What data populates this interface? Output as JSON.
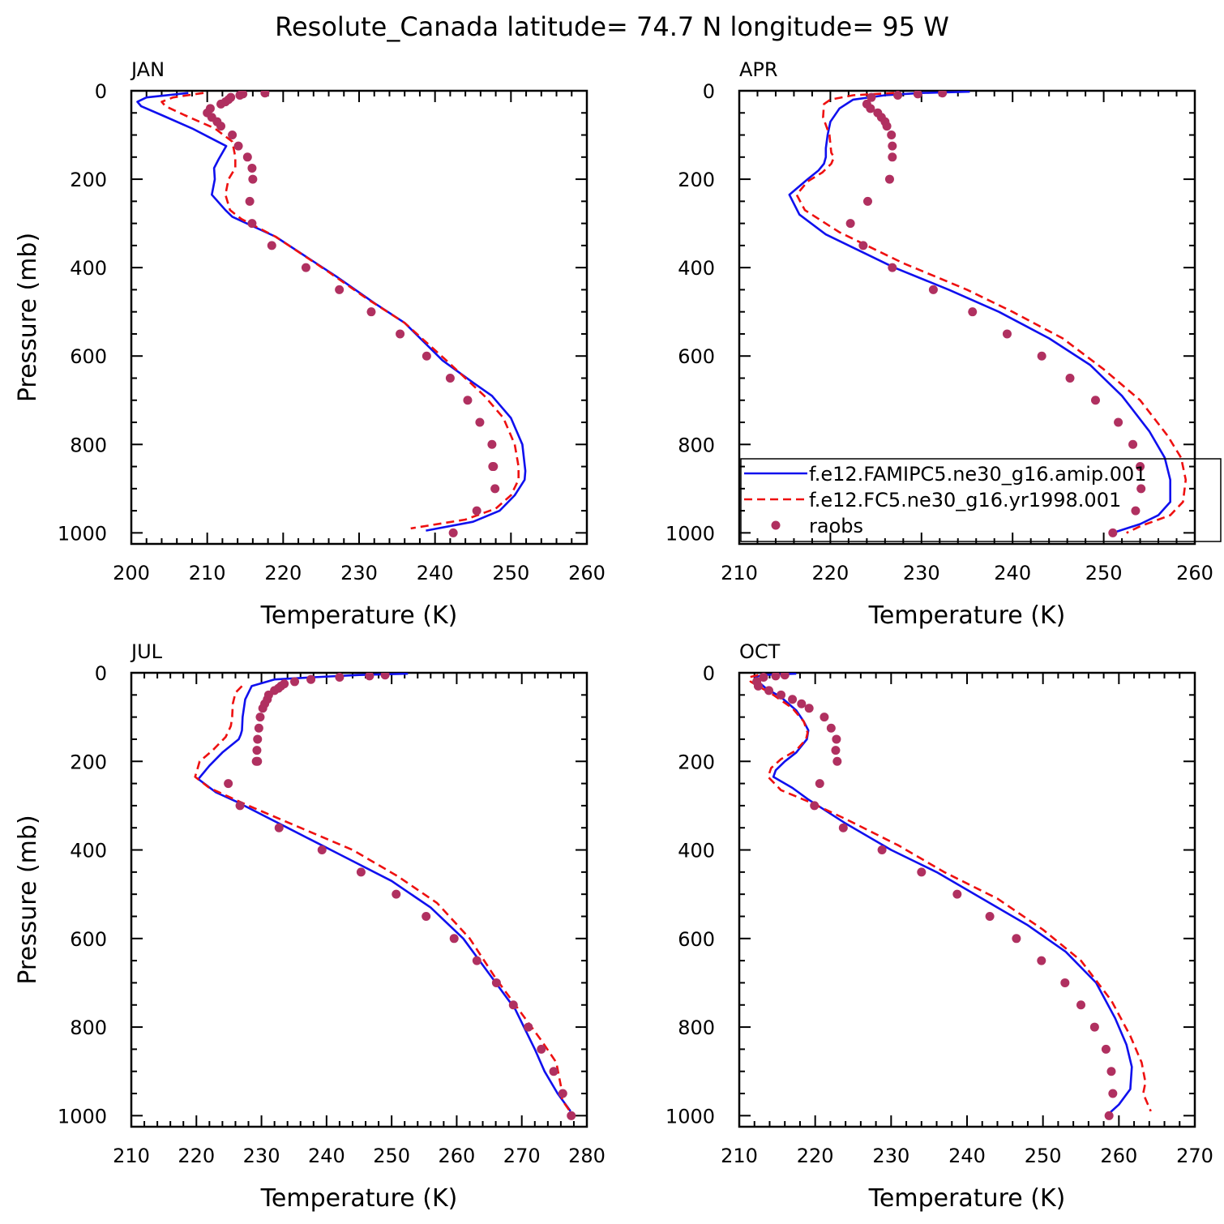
{
  "figure": {
    "title": "Resolute_Canada  latitude= 74.7 N longitude= 95 W"
  },
  "colors": {
    "model1": "#1010ee",
    "model2": "#ee1010",
    "obs": "#b03060",
    "axis": "#000000"
  },
  "chart_data": [
    {
      "type": "line",
      "title": "JAN",
      "xlabel": "Temperature (K)",
      "ylabel": "Pressure (mb)",
      "xlim": [
        200,
        260
      ],
      "ylim": [
        0,
        1025
      ],
      "xticks": [
        200,
        210,
        220,
        230,
        240,
        250,
        260
      ],
      "yticks": [
        0,
        200,
        400,
        600,
        800,
        1000
      ],
      "series": [
        {
          "name": "f.e12.FAMIPC5.ne30_g16.amip.001",
          "style": "solid",
          "color": "#1010ee",
          "x": [
            207.5,
            202,
            200.8,
            201.3,
            204,
            208,
            212.5,
            211.5,
            210.9,
            211,
            210.6,
            212.4,
            213.3,
            219,
            227,
            232,
            236,
            241,
            245,
            247.5,
            250,
            251.5,
            251.9,
            251.8,
            250.5,
            248.5,
            245,
            238.8
          ],
          "y": [
            5,
            15,
            25,
            35,
            55,
            85,
            125,
            155,
            175,
            200,
            235,
            270,
            285,
            330,
            420,
            480,
            525,
            610,
            660,
            690,
            740,
            800,
            860,
            880,
            915,
            950,
            975,
            995
          ]
        },
        {
          "name": "f.e12.FC5.ne30_g16.yr1998.001",
          "style": "dashed",
          "color": "#ee1010",
          "x": [
            209.5,
            205.5,
            204,
            204.5,
            207,
            211,
            213.3,
            213.7,
            213.7,
            212.8,
            212.4,
            213,
            214.5,
            219,
            226,
            231,
            236,
            241.5,
            246.5,
            249,
            250.5,
            251,
            251,
            250,
            248,
            244,
            236.8
          ],
          "y": [
            5,
            15,
            25,
            35,
            55,
            85,
            115,
            150,
            175,
            200,
            235,
            270,
            290,
            330,
            410,
            470,
            525,
            610,
            690,
            740,
            800,
            850,
            880,
            915,
            945,
            970,
            990
          ]
        }
      ],
      "observations": {
        "name": "raobs",
        "x": [
          217.6,
          214.7,
          214.3,
          213.1,
          212.8,
          212.4,
          211.8,
          210.4,
          210,
          210.6,
          211.3,
          211.8,
          213.3,
          214.1,
          215.3,
          215.9,
          216,
          215.6,
          215.9,
          218.5,
          223,
          227.4,
          231.6,
          235.4,
          238.9,
          242,
          244.3,
          245.9,
          247.5,
          247.7,
          247.9,
          247.6,
          245.5,
          242.4
        ],
        "y": [
          5,
          7,
          10,
          15,
          20,
          25,
          30,
          40,
          50,
          60,
          70,
          80,
          100,
          125,
          150,
          175,
          200,
          250,
          300,
          350,
          400,
          450,
          500,
          550,
          600,
          650,
          700,
          750,
          800,
          850,
          900,
          850,
          950,
          1000
        ]
      }
    },
    {
      "type": "line",
      "title": "APR",
      "xlabel": "Temperature (K)",
      "ylabel": "",
      "xlim": [
        210,
        260
      ],
      "ylim": [
        0,
        1025
      ],
      "xticks": [
        210,
        220,
        230,
        240,
        250,
        260
      ],
      "yticks": [
        0,
        200,
        400,
        600,
        800,
        1000
      ],
      "series": [
        {
          "name": "f.e12.FAMIPC5.ne30_g16.amip.001",
          "style": "solid",
          "color": "#1010ee",
          "x": [
            235.3,
            230,
            226,
            222.5,
            221,
            220,
            219.7,
            219.5,
            219.5,
            219.3,
            218.7,
            217.5,
            215.5,
            216.6,
            219.5,
            227,
            233,
            238.5,
            244,
            248.5,
            252,
            255,
            256.7,
            257.3,
            257.3,
            256,
            254,
            251
          ],
          "y": [
            2,
            5,
            10,
            20,
            40,
            70,
            100,
            130,
            150,
            165,
            180,
            200,
            235,
            280,
            325,
            400,
            450,
            500,
            560,
            620,
            690,
            770,
            830,
            880,
            930,
            960,
            980,
            1000
          ]
        },
        {
          "name": "f.e12.FC5.ne30_g16.yr1998.001",
          "style": "dashed",
          "color": "#ee1010",
          "x": [
            227,
            222.5,
            220,
            219.3,
            219.2,
            219.9,
            220.1,
            220.4,
            220.1,
            219.1,
            217.5,
            216.3,
            217.2,
            221,
            228,
            235,
            240,
            245.5,
            250,
            254,
            257,
            258.5,
            259,
            258.7,
            257.3,
            254,
            252.5
          ],
          "y": [
            5,
            10,
            20,
            30,
            60,
            100,
            140,
            150,
            165,
            185,
            205,
            235,
            270,
            320,
            390,
            450,
            500,
            560,
            630,
            700,
            780,
            830,
            880,
            930,
            960,
            985,
            1000
          ]
        }
      ],
      "observations": {
        "name": "raobs",
        "x": [
          232.3,
          229.6,
          227.4,
          224.5,
          224,
          224.4,
          225.2,
          225.6,
          226,
          226.2,
          226.7,
          226.8,
          226.8,
          226.5,
          224.1,
          222.2,
          223.6,
          226.8,
          231.3,
          235.6,
          239.4,
          243.2,
          246.3,
          249.1,
          251.6,
          253.2,
          254,
          254.1,
          253.5,
          251
        ],
        "y": [
          5,
          7,
          10,
          15,
          30,
          40,
          50,
          60,
          70,
          80,
          100,
          125,
          150,
          200,
          250,
          300,
          350,
          400,
          450,
          500,
          550,
          600,
          650,
          700,
          750,
          800,
          850,
          900,
          950,
          1000
        ]
      },
      "legend": {
        "placement": "lower-right",
        "entries": [
          {
            "label": "f.e12.FAMIPC5.ne30_g16.amip.001",
            "style": "solid"
          },
          {
            "label": "f.e12.FC5.ne30_g16.yr1998.001",
            "style": "dashed"
          },
          {
            "label": "raobs",
            "style": "marker"
          }
        ]
      }
    },
    {
      "type": "line",
      "title": "JUL",
      "xlabel": "Temperature (K)",
      "ylabel": "Pressure (mb)",
      "xlim": [
        210,
        280
      ],
      "ylim": [
        0,
        1025
      ],
      "xticks": [
        210,
        220,
        230,
        240,
        250,
        260,
        270,
        280
      ],
      "yticks": [
        0,
        200,
        400,
        600,
        800,
        1000
      ],
      "series": [
        {
          "name": "f.e12.FAMIPC5.ne30_g16.amip.001",
          "style": "solid",
          "color": "#1010ee",
          "x": [
            252.5,
            245,
            238,
            232,
            228.5,
            227.5,
            227.1,
            227,
            226.8,
            226.5,
            224,
            222,
            220.3,
            223,
            226,
            234,
            242,
            250,
            256,
            261,
            265,
            269,
            272,
            273.5,
            275.5,
            277.5
          ],
          "y": [
            2,
            5,
            10,
            15,
            30,
            60,
            100,
            130,
            140,
            150,
            180,
            210,
            240,
            270,
            290,
            350,
            410,
            470,
            530,
            600,
            680,
            760,
            850,
            900,
            950,
            990
          ]
        },
        {
          "name": "f.e12.FC5.ne30_g16.yr1998.001",
          "style": "dashed",
          "color": "#ee1010",
          "x": [
            227,
            226,
            225.6,
            225.5,
            225.3,
            224.5,
            222.5,
            220.5,
            220.1,
            219.8,
            222,
            228,
            236,
            244,
            251,
            257,
            262,
            266,
            270.5,
            273,
            275.3,
            276.1,
            276.2,
            277.4
          ],
          "y": [
            30,
            45,
            70,
            100,
            120,
            145,
            175,
            200,
            220,
            235,
            260,
            300,
            350,
            400,
            460,
            520,
            600,
            690,
            780,
            830,
            880,
            940,
            965,
            990
          ]
        },
        {
          "name": "raobs",
          "style": "marker",
          "color": "#b03060",
          "x": [
            249,
            246.6,
            242,
            237.6,
            235.1,
            233.5,
            233,
            232.6,
            232,
            231.1,
            230.9,
            230.5,
            230.2,
            229.8,
            229.6,
            229.4,
            229.3,
            229.2,
            229.4,
            224.9,
            226.7,
            232.7,
            239.3,
            245.3,
            250.7,
            255.3,
            259.6,
            263.1,
            266.1,
            268.7,
            271,
            273,
            274.9,
            276.3,
            277.6
          ],
          "y": [
            5,
            7,
            10,
            15,
            20,
            25,
            30,
            35,
            40,
            50,
            60,
            70,
            80,
            100,
            125,
            150,
            175,
            200,
            200,
            250,
            300,
            350,
            400,
            450,
            500,
            550,
            600,
            650,
            700,
            750,
            800,
            850,
            900,
            950,
            1000
          ]
        }
      ],
      "observations": {
        "name": "raobs",
        "x": [],
        "y": []
      }
    },
    {
      "type": "line",
      "title": "OCT",
      "xlabel": "Temperature (K)",
      "ylabel": "",
      "xlim": [
        210,
        270
      ],
      "ylim": [
        0,
        1025
      ],
      "xticks": [
        210,
        220,
        230,
        240,
        250,
        260,
        270
      ],
      "yticks": [
        0,
        200,
        400,
        600,
        800,
        1000
      ],
      "series": [
        {
          "name": "f.e12.FAMIPC5.ne30_g16.amip.001",
          "style": "solid",
          "color": "#1010ee",
          "x": [
            217.5,
            213,
            212.1,
            212.5,
            213.5,
            215.5,
            217.5,
            218.5,
            219.1,
            218.9,
            217.5,
            216,
            214.8,
            214.5,
            217,
            219,
            224,
            230,
            236,
            242,
            248,
            253,
            257,
            259.5,
            261,
            261.7,
            261.5,
            260,
            258.7
          ],
          "y": [
            2,
            5,
            10,
            20,
            35,
            55,
            85,
            110,
            130,
            150,
            180,
            200,
            220,
            235,
            260,
            285,
            340,
            400,
            450,
            510,
            570,
            630,
            700,
            780,
            840,
            890,
            940,
            975,
            995
          ]
        },
        {
          "name": "f.e12.FC5.ne30_g16.yr1998.001",
          "style": "dashed",
          "color": "#ee1010",
          "x": [
            212.5,
            211.3,
            211.5,
            212.5,
            214.5,
            217,
            218.5,
            219,
            218.8,
            217.5,
            215.5,
            214.2,
            213.8,
            215.5,
            219,
            224,
            231,
            237,
            244,
            250,
            255,
            259,
            261.5,
            263,
            263.5,
            263.2,
            264.2
          ],
          "y": [
            5,
            10,
            20,
            30,
            50,
            80,
            110,
            135,
            150,
            175,
            195,
            215,
            235,
            265,
            290,
            330,
            390,
            450,
            510,
            580,
            650,
            740,
            820,
            880,
            925,
            950,
            990
          ]
        }
      ],
      "observations": {
        "name": "raobs",
        "x": [
          216,
          214.8,
          213.2,
          212.3,
          212.5,
          213.9,
          215.5,
          217,
          218.2,
          219.2,
          221.2,
          222.1,
          222.8,
          222.7,
          222.9,
          220.6,
          219.9,
          223.7,
          228.8,
          234,
          238.7,
          243,
          246.5,
          249.8,
          252.9,
          255,
          256.8,
          258.3,
          259,
          259.2,
          258.7
        ],
        "y": [
          5,
          7,
          10,
          20,
          30,
          40,
          50,
          60,
          70,
          80,
          100,
          125,
          150,
          175,
          200,
          250,
          300,
          350,
          400,
          450,
          500,
          550,
          600,
          650,
          700,
          750,
          800,
          850,
          900,
          950,
          1000
        ]
      }
    }
  ]
}
